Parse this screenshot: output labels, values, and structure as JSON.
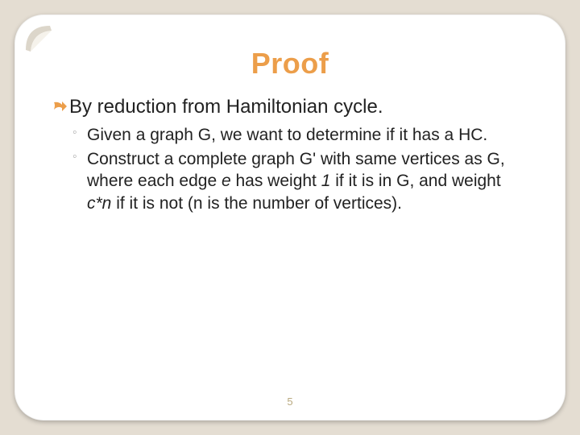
{
  "slide": {
    "title": "Proof",
    "title_color": "#ec9e4a",
    "background_outer": "#e4ddd2",
    "background_inner": "#ffffff",
    "corner_radius": 36,
    "main_bullet": {
      "marker_color": "#ec9e4a",
      "text": "By reduction from Hamiltonian cycle."
    },
    "sub_bullets": [
      {
        "marker": "◦",
        "text": "Given a graph G, we want to determine if it has a HC."
      },
      {
        "marker": "◦",
        "text_parts": [
          {
            "t": "Construct a complete graph G' with same vertices as G, where each edge ",
            "i": false
          },
          {
            "t": "e",
            "i": true
          },
          {
            "t": " has weight ",
            "i": false
          },
          {
            "t": "1",
            "i": true
          },
          {
            "t": " if it is in G, and weight ",
            "i": false
          },
          {
            "t": "c*n",
            "i": true
          },
          {
            "t": " if it is not (n is the number of vertices).",
            "i": false
          }
        ]
      }
    ],
    "page_number": "5",
    "page_number_color": "#b9a97f",
    "font_family": "Verdana",
    "title_fontsize": 36,
    "body_fontsize": 24,
    "sub_fontsize": 21
  }
}
